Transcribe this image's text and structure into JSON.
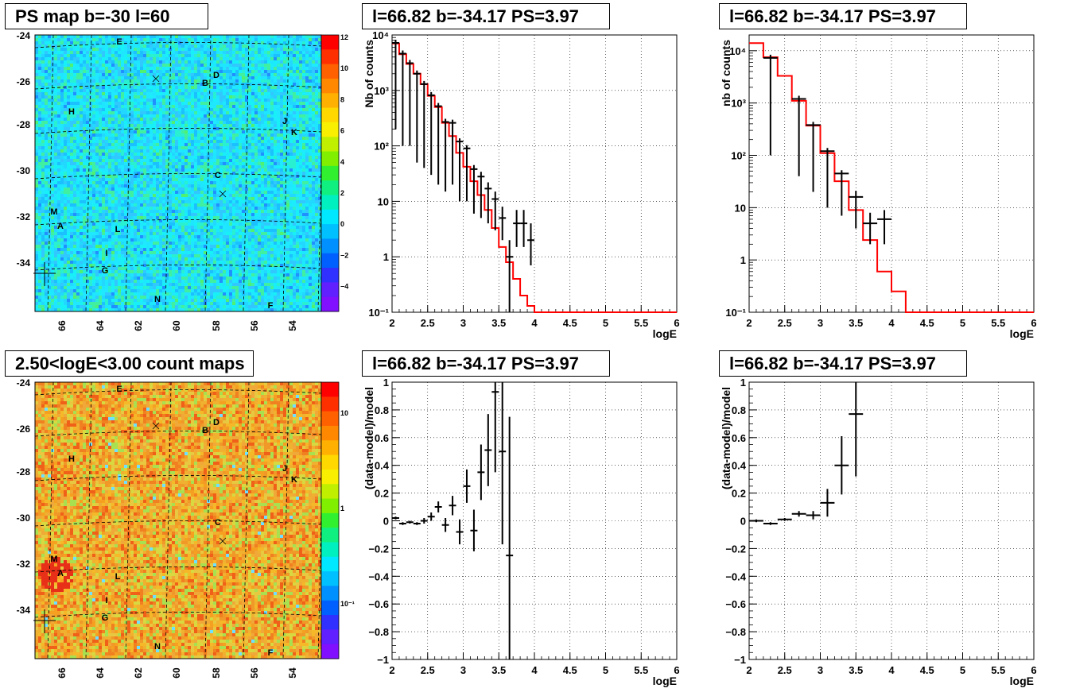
{
  "panels": {
    "ps_map": {
      "title": "PS map b=-30 l=60"
    },
    "count_map": {
      "title": "2.50<logE<3.00 count maps"
    },
    "spec_left": {
      "title": "l=66.82 b=-34.17 PS=3.97"
    },
    "spec_right": {
      "title": "l=66.82 b=-34.17 PS=3.97"
    },
    "res_left": {
      "title": "l=66.82 b=-34.17 PS=3.97"
    },
    "res_right": {
      "title": "l=66.82 b=-34.17 PS=3.97"
    }
  },
  "map_axes": {
    "x_ticks": [
      "66",
      "64",
      "62",
      "60",
      "58",
      "56",
      "54"
    ],
    "y_ticks": [
      "-24",
      "-26",
      "-28",
      "-30",
      "-32",
      "-34"
    ],
    "source_labels": [
      "E",
      "D",
      "B",
      "H",
      "J",
      "K",
      "C",
      "M",
      "A",
      "L",
      "I",
      "G",
      "N",
      "F"
    ],
    "ps_colorbar_ticks": [
      "12",
      "10",
      "8",
      "6",
      "4",
      "2",
      "0",
      "−2",
      "−4"
    ],
    "count_colorbar_ticks": [
      "10",
      "1",
      "10⁻¹"
    ],
    "colors": {
      "ps_background": "#1ee6ff",
      "count_background": "#f2a020"
    }
  },
  "chart_data": [
    {
      "type": "line",
      "name": "spectrum-left",
      "xlabel": "logE",
      "ylabel": "Nb of counts",
      "xlim": [
        2,
        6
      ],
      "ylim": [
        0.1,
        10000
      ],
      "yscale": "log",
      "x_ticks": [
        "2",
        "2.5",
        "3",
        "3.5",
        "4",
        "4.5",
        "5",
        "5.5",
        "6"
      ],
      "y_ticks": [
        "10⁴",
        "10³",
        "10²",
        "10",
        "1",
        "10⁻¹"
      ],
      "grid": true,
      "series": [
        {
          "style": "step",
          "color": "#ff0000",
          "bins": [
            2.0,
            2.1,
            2.2,
            2.3,
            2.4,
            2.5,
            2.6,
            2.7,
            2.8,
            2.9,
            3.0,
            3.1,
            3.2,
            3.3,
            3.4,
            3.5,
            3.6,
            3.7,
            3.8,
            3.9,
            4.0,
            4.1,
            4.2,
            6.0
          ],
          "values": [
            7000,
            4500,
            3000,
            2000,
            1300,
            800,
            500,
            260,
            150,
            75,
            42,
            23,
            13,
            7,
            3.3,
            1.5,
            0.8,
            0.4,
            0.2,
            0.13,
            0.1,
            0.1,
            0.1
          ]
        },
        {
          "style": "points",
          "color": "#000000",
          "x": [
            2.05,
            2.15,
            2.25,
            2.35,
            2.45,
            2.55,
            2.65,
            2.75,
            2.85,
            2.95,
            3.05,
            3.15,
            3.25,
            3.35,
            3.45,
            3.55,
            3.65,
            3.75,
            3.85,
            3.95
          ],
          "y": [
            7200,
            4600,
            3100,
            2000,
            1300,
            820,
            520,
            270,
            260,
            120,
            90,
            38,
            28,
            17,
            11,
            5,
            1,
            4,
            4,
            2
          ],
          "yerr_lo": [
            7000,
            4500,
            3000,
            1950,
            1260,
            790,
            500,
            255,
            240,
            110,
            80,
            32,
            23,
            13,
            8,
            3,
            0.9,
            2.5,
            2.5,
            1.3
          ],
          "yerr_hi": [
            7400,
            4700,
            3200,
            2050,
            1340,
            850,
            540,
            285,
            280,
            130,
            100,
            45,
            34,
            22,
            15,
            8,
            2,
            7,
            7,
            4
          ]
        }
      ]
    },
    {
      "type": "line",
      "name": "spectrum-right",
      "xlabel": "logE",
      "ylabel": "nb of counts",
      "xlim": [
        2,
        6
      ],
      "ylim": [
        0.1,
        20000
      ],
      "yscale": "log",
      "x_ticks": [
        "2",
        "2.5",
        "3",
        "3.5",
        "4",
        "4.5",
        "5",
        "5.5",
        "6"
      ],
      "y_ticks": [
        "10⁴",
        "10³",
        "10²",
        "10",
        "1",
        "10⁻¹"
      ],
      "grid": true,
      "series": [
        {
          "style": "step",
          "color": "#ff0000",
          "bins": [
            2.0,
            2.2,
            2.4,
            2.6,
            2.8,
            3.0,
            3.2,
            3.4,
            3.6,
            3.8,
            4.0,
            4.2,
            6.0
          ],
          "values": [
            14000,
            7500,
            3300,
            1100,
            370,
            110,
            32,
            9,
            2.4,
            0.6,
            0.25,
            0.1
          ]
        },
        {
          "style": "points",
          "color": "#000000",
          "x": [
            2.3,
            2.7,
            2.9,
            3.1,
            3.3,
            3.5,
            3.7,
            3.9
          ],
          "y": [
            7300,
            1200,
            380,
            120,
            45,
            16,
            5,
            6
          ],
          "yerr_lo": [
            7200,
            1160,
            360,
            110,
            38,
            12,
            3,
            4
          ],
          "yerr_hi": [
            7400,
            1240,
            400,
            130,
            52,
            21,
            8,
            9
          ]
        }
      ]
    },
    {
      "type": "scatter",
      "name": "residual-left",
      "xlabel": "logE",
      "ylabel": "(data-model)/model",
      "xlim": [
        2,
        6
      ],
      "ylim": [
        -1,
        1
      ],
      "x_ticks": [
        "2",
        "2.5",
        "3",
        "3.5",
        "4",
        "4.5",
        "5",
        "5.5",
        "6"
      ],
      "y_ticks": [
        "1",
        "0.8",
        "0.6",
        "0.4",
        "0.2",
        "0",
        "−0.2",
        "−0.4",
        "−0.6",
        "−0.8",
        "−1"
      ],
      "grid": true,
      "series": [
        {
          "color": "#000000",
          "x": [
            2.05,
            2.15,
            2.25,
            2.35,
            2.45,
            2.55,
            2.65,
            2.75,
            2.85,
            2.95,
            3.05,
            3.15,
            3.25,
            3.35,
            3.45,
            3.55,
            3.65
          ],
          "y": [
            0.02,
            -0.02,
            -0.01,
            -0.02,
            0.0,
            0.03,
            0.1,
            -0.03,
            0.11,
            -0.08,
            0.25,
            -0.07,
            0.35,
            0.51,
            0.93,
            0.5,
            -0.25
          ],
          "yerr": [
            0.01,
            0.01,
            0.01,
            0.01,
            0.02,
            0.03,
            0.04,
            0.05,
            0.07,
            0.09,
            0.12,
            0.15,
            0.2,
            0.26,
            0.58,
            0.67,
            1.0
          ]
        }
      ]
    },
    {
      "type": "scatter",
      "name": "residual-right",
      "xlabel": "logE",
      "ylabel": "(data-model)/model",
      "xlim": [
        2,
        6
      ],
      "ylim": [
        -1,
        1
      ],
      "x_ticks": [
        "2",
        "2.5",
        "3",
        "3.5",
        "4",
        "4.5",
        "5",
        "5.5",
        "6"
      ],
      "y_ticks": [
        "1",
        "0.8",
        "0.6",
        "0.4",
        "0.2",
        "0",
        "−0.2",
        "−0.4",
        "−0.6",
        "−0.8",
        "−1"
      ],
      "grid": true,
      "series": [
        {
          "color": "#000000",
          "x": [
            2.1,
            2.3,
            2.5,
            2.7,
            2.9,
            3.1,
            3.3,
            3.5
          ],
          "y": [
            0.0,
            -0.02,
            0.01,
            0.05,
            0.04,
            0.13,
            0.4,
            0.77
          ],
          "yerr": [
            0.01,
            0.01,
            0.01,
            0.02,
            0.03,
            0.1,
            0.21,
            0.45
          ]
        }
      ]
    }
  ]
}
